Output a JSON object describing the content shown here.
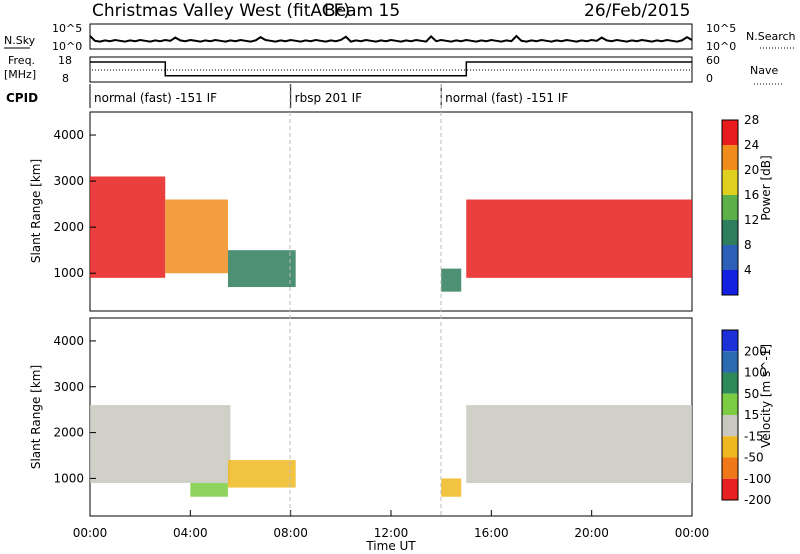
{
  "header": {
    "station": "Christmas Valley West (fitACF)",
    "beam": "Beam 15",
    "date": "26/Feb/2015"
  },
  "nsky": {
    "label": "N.Sky",
    "tick_top": "10^5",
    "tick_bottom": "10^0",
    "right_label": "N.Search",
    "right_tick_top": "10^5",
    "right_tick_bottom": "10^0"
  },
  "freq": {
    "label_line1": "Freq.",
    "label_line2": "[MHz]",
    "tick_top": "18",
    "tick_bottom": "8",
    "right_label": "Nave",
    "right_tick_top": "60",
    "right_tick_bottom": "0",
    "steps": [
      {
        "start_hour": 0,
        "end_hour": 3.0,
        "mhz": 16
      },
      {
        "start_hour": 3.0,
        "end_hour": 15.0,
        "mhz": 10.5
      },
      {
        "start_hour": 15.0,
        "end_hour": 24,
        "mhz": 16
      }
    ]
  },
  "cpid": {
    "label": "CPID",
    "modes": [
      {
        "label": "normal (fast) -151 IF",
        "start_hour": 0
      },
      {
        "label": "rbsp 201 IF",
        "start_hour": 8.0
      },
      {
        "label": "normal (fast) -151 IF",
        "start_hour": 14.0
      }
    ]
  },
  "chart_data": [
    {
      "type": "heatmap",
      "parameter": "Power",
      "xlabel": "",
      "ylabel": "Slant Range [km]",
      "ylim": [
        180,
        4500
      ],
      "y_ticks": [
        "1000",
        "2000",
        "3000",
        "4000"
      ],
      "colorbar_label": "Power [dB]",
      "colorbar_ticks": [
        "4",
        "8",
        "12",
        "16",
        "20",
        "24",
        "28"
      ],
      "colorbar_colors": [
        "#1420e0",
        "#2c5fb8",
        "#2e7d5c",
        "#5bb04a",
        "#e0d020",
        "#f08c1c",
        "#e81c1c"
      ],
      "regions": [
        {
          "t0": 0.0,
          "t1": 3.0,
          "r0": 900,
          "r1": 3100,
          "level": "high"
        },
        {
          "t0": 3.0,
          "t1": 5.5,
          "r0": 1000,
          "r1": 2600,
          "level": "mid"
        },
        {
          "t0": 5.5,
          "t1": 8.2,
          "r0": 700,
          "r1": 1500,
          "level": "low"
        },
        {
          "t0": 14.0,
          "t1": 14.8,
          "r0": 600,
          "r1": 1100,
          "level": "low"
        },
        {
          "t0": 15.0,
          "t1": 24.0,
          "r0": 900,
          "r1": 2600,
          "level": "high"
        }
      ]
    },
    {
      "type": "heatmap",
      "parameter": "Velocity",
      "xlabel": "Time UT",
      "ylabel": "Slant Range [km]",
      "ylim": [
        180,
        4500
      ],
      "y_ticks": [
        "1000",
        "2000",
        "3000",
        "4000"
      ],
      "x_ticks": [
        "00:00",
        "04:00",
        "08:00",
        "12:00",
        "16:00",
        "20:00",
        "00:00"
      ],
      "colorbar_label": "Velocity [m s^-1]",
      "colorbar_ticks": [
        "200",
        "100",
        "50",
        "15",
        "-15",
        "-50",
        "-100",
        "-200"
      ],
      "colorbar_colors": [
        "#1c30d8",
        "#2c6ab0",
        "#2e8a5a",
        "#7ccc44",
        "#c8c8c0",
        "#f0b820",
        "#f07818",
        "#e82020"
      ],
      "regions": [
        {
          "t0": 0.0,
          "t1": 5.6,
          "r0": 900,
          "r1": 2600,
          "velocity": "-15 to 15 (ground scatter)"
        },
        {
          "t0": 5.5,
          "t1": 8.2,
          "r0": 800,
          "r1": 1400,
          "velocity": "-50 to -15"
        },
        {
          "t0": 4.0,
          "t1": 5.5,
          "r0": 600,
          "r1": 900,
          "velocity": "15 to 50"
        },
        {
          "t0": 14.0,
          "t1": 14.8,
          "r0": 600,
          "r1": 1000,
          "velocity": "-50 to -15"
        },
        {
          "t0": 15.0,
          "t1": 24.0,
          "r0": 900,
          "r1": 2600,
          "velocity": "-15 to 15 (ground scatter)"
        }
      ]
    }
  ]
}
